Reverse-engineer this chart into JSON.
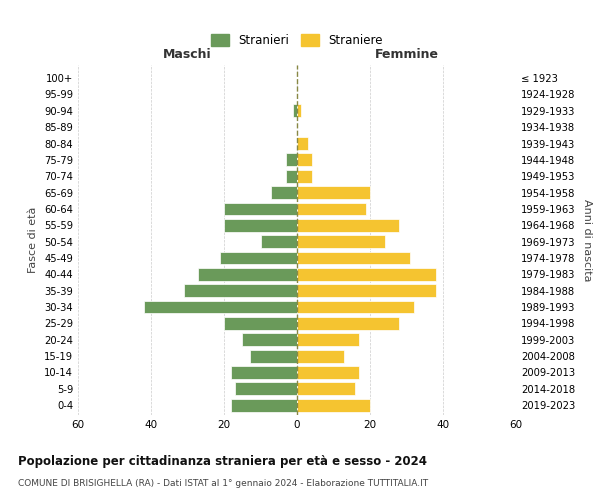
{
  "age_groups": [
    "0-4",
    "5-9",
    "10-14",
    "15-19",
    "20-24",
    "25-29",
    "30-34",
    "35-39",
    "40-44",
    "45-49",
    "50-54",
    "55-59",
    "60-64",
    "65-69",
    "70-74",
    "75-79",
    "80-84",
    "85-89",
    "90-94",
    "95-99",
    "100+"
  ],
  "birth_years": [
    "2019-2023",
    "2014-2018",
    "2009-2013",
    "2004-2008",
    "1999-2003",
    "1994-1998",
    "1989-1993",
    "1984-1988",
    "1979-1983",
    "1974-1978",
    "1969-1973",
    "1964-1968",
    "1959-1963",
    "1954-1958",
    "1949-1953",
    "1944-1948",
    "1939-1943",
    "1934-1938",
    "1929-1933",
    "1924-1928",
    "≤ 1923"
  ],
  "maschi": [
    18,
    17,
    18,
    13,
    15,
    20,
    42,
    31,
    27,
    21,
    10,
    20,
    20,
    7,
    3,
    3,
    0,
    0,
    1,
    0,
    0
  ],
  "femmine": [
    20,
    16,
    17,
    13,
    17,
    28,
    32,
    38,
    38,
    31,
    24,
    28,
    19,
    20,
    4,
    4,
    3,
    0,
    1,
    0,
    0
  ],
  "male_color": "#6a9a5a",
  "female_color": "#f5c430",
  "title_bold": "Popolazione per cittadinanza straniera per età e sesso - 2024",
  "subtitle": "COMUNE DI BRISIGHELLA (RA) - Dati ISTAT al 1° gennaio 2024 - Elaborazione TUTTITALIA.IT",
  "legend_male": "Stranieri",
  "legend_female": "Straniere",
  "xlabel_left": "Maschi",
  "xlabel_right": "Femmine",
  "ylabel_left": "Fasce di età",
  "ylabel_right": "Anni di nascita",
  "xlim": 60,
  "background_color": "#ffffff",
  "grid_color": "#cccccc"
}
